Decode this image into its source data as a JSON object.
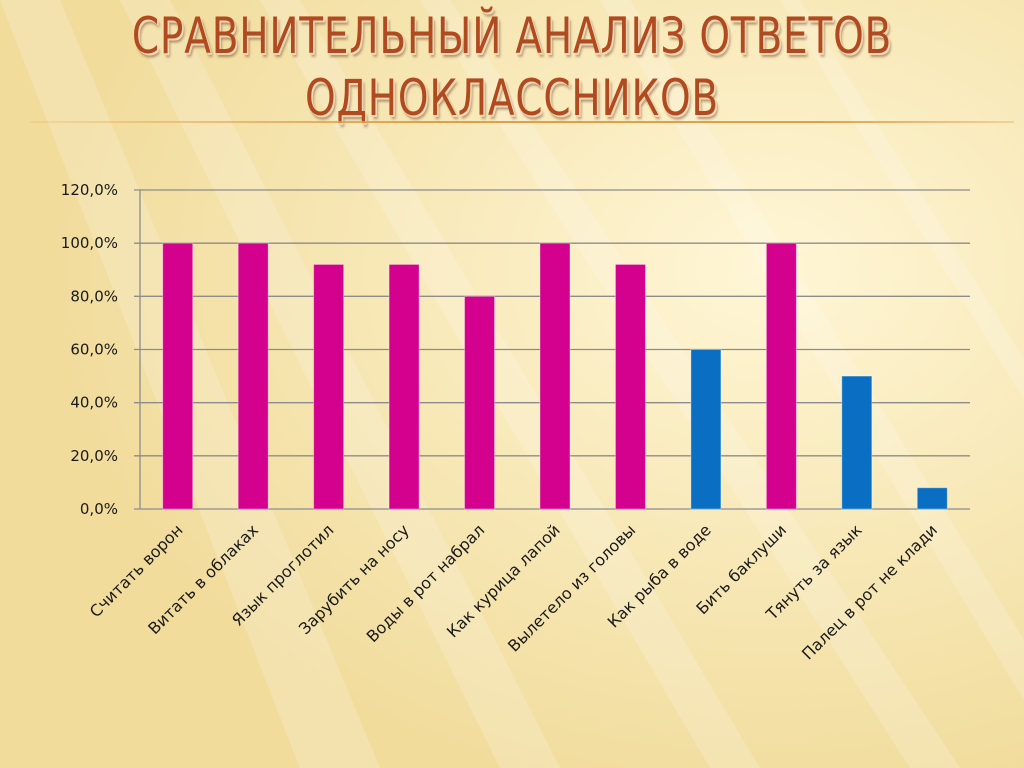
{
  "slide": {
    "title_line1": "СРАВНИТЕЛЬНЫЙ АНАЛИЗ ОТВЕТОВ",
    "title_line2": "ОДНОКЛАССНИКОВ"
  },
  "colors": {
    "title": "#b14a1e",
    "bar_high": "#d4008e",
    "bar_low": "#0a6fc2",
    "grid": "#8c8c8c"
  },
  "chart_data": {
    "type": "bar",
    "categories": [
      "Считать ворон",
      "Витать в облаках",
      "Язык проглотил",
      "Зарубить на носу",
      "Воды в рот набрал",
      "Как курица лапой",
      "Вылетело из головы",
      "Как рыба в воде",
      "Бить баклуши",
      "Тянуть за язык",
      "Палец в рот не клади"
    ],
    "values": [
      100,
      100,
      92,
      92,
      80,
      100,
      92,
      60,
      100,
      50,
      8
    ],
    "bar_colors": [
      "magenta",
      "magenta",
      "magenta",
      "magenta",
      "magenta",
      "magenta",
      "magenta",
      "blue",
      "magenta",
      "blue",
      "blue"
    ],
    "ylim": [
      0,
      120
    ],
    "yticks": [
      0,
      20,
      40,
      60,
      80,
      100,
      120
    ],
    "ytick_labels": [
      "0,0%",
      "20,0%",
      "40,0%",
      "60,0%",
      "80,0%",
      "100,0%",
      "120,0%"
    ],
    "grid": true,
    "legend": "none"
  }
}
